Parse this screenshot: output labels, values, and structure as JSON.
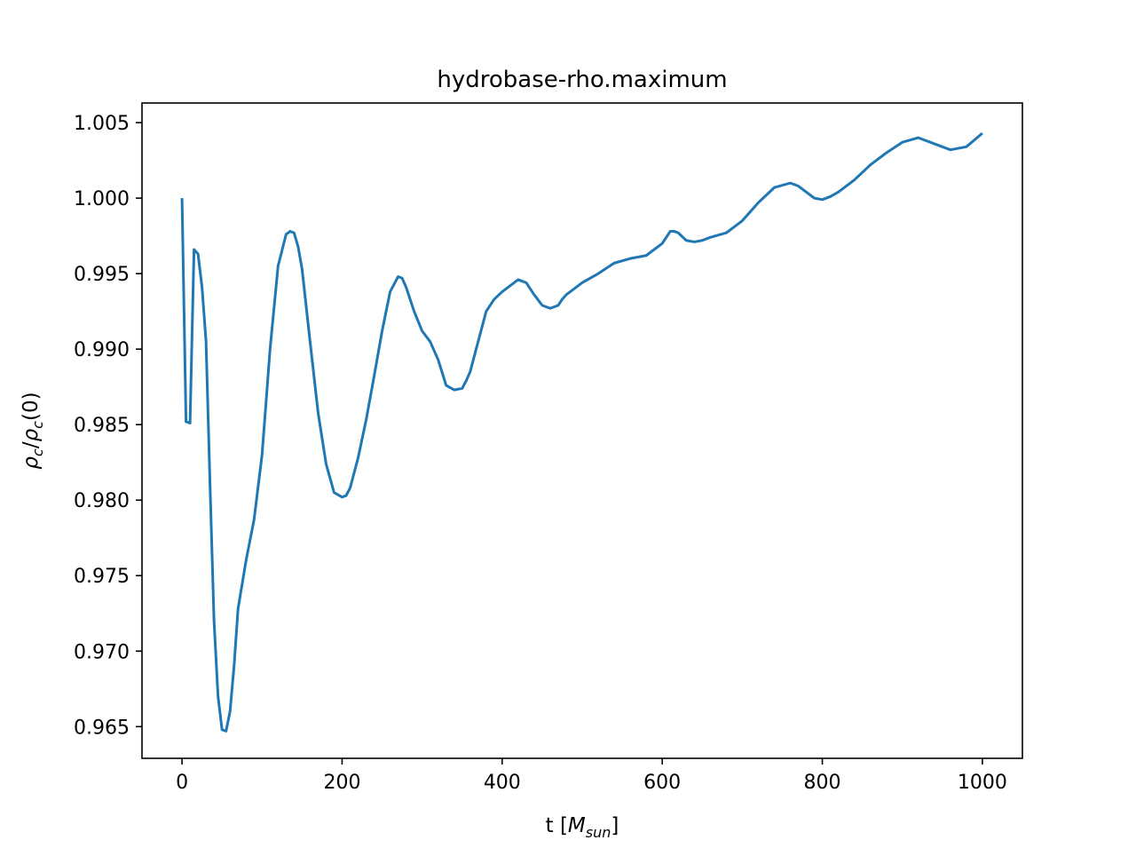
{
  "chart_data": {
    "type": "line",
    "title": "hydrobase-rho.maximum",
    "xlabel": {
      "prefix": "t [",
      "main": "M",
      "subscript": "sun",
      "suffix": "]"
    },
    "ylabel": {
      "rho1": "ρ",
      "sub1": "c",
      "slash": "/",
      "rho2": "ρ",
      "sub2": "c",
      "suffix": "(0)"
    },
    "xlim": [
      -50,
      1050
    ],
    "ylim": [
      0.9629,
      1.0063
    ],
    "x_ticks": [
      0,
      200,
      400,
      600,
      800,
      1000
    ],
    "x_tick_labels": [
      "0",
      "200",
      "400",
      "600",
      "800",
      "1000"
    ],
    "y_ticks": [
      0.965,
      0.97,
      0.975,
      0.98,
      0.985,
      0.99,
      0.995,
      1.0,
      1.005
    ],
    "y_tick_labels": [
      "0.965",
      "0.970",
      "0.975",
      "0.980",
      "0.985",
      "0.990",
      "0.995",
      "1.000",
      "1.005"
    ],
    "grid": false,
    "line_color": "#1f77b4",
    "series": [
      {
        "x": [
          0,
          5,
          10,
          15,
          20,
          25,
          30,
          35,
          40,
          45,
          50,
          55,
          60,
          65,
          70,
          80,
          90,
          100,
          110,
          120,
          130,
          135,
          140,
          145,
          150,
          160,
          170,
          180,
          190,
          200,
          205,
          210,
          220,
          230,
          240,
          250,
          260,
          270,
          275,
          280,
          290,
          300,
          310,
          320,
          330,
          340,
          350,
          355,
          360,
          370,
          380,
          390,
          400,
          420,
          430,
          440,
          450,
          460,
          470,
          475,
          480,
          490,
          500,
          520,
          540,
          560,
          580,
          600,
          610,
          615,
          620,
          630,
          640,
          650,
          660,
          680,
          700,
          720,
          740,
          760,
          770,
          780,
          790,
          800,
          810,
          820,
          840,
          860,
          880,
          900,
          920,
          940,
          960,
          980,
          1000
        ],
        "y": [
          1.0,
          0.9852,
          0.9851,
          0.9966,
          0.9963,
          0.9941,
          0.9905,
          0.981,
          0.972,
          0.967,
          0.9648,
          0.9647,
          0.966,
          0.969,
          0.9728,
          0.976,
          0.9787,
          0.983,
          0.99,
          0.9955,
          0.9976,
          0.9978,
          0.9977,
          0.9968,
          0.9953,
          0.9905,
          0.9858,
          0.9824,
          0.9805,
          0.9802,
          0.9803,
          0.9808,
          0.9828,
          0.9853,
          0.9882,
          0.9912,
          0.9938,
          0.9948,
          0.9947,
          0.9941,
          0.9925,
          0.9912,
          0.9905,
          0.9893,
          0.9876,
          0.9873,
          0.9874,
          0.9879,
          0.9885,
          0.9905,
          0.9925,
          0.9933,
          0.9938,
          0.9946,
          0.9944,
          0.9936,
          0.9929,
          0.9927,
          0.9929,
          0.9933,
          0.9936,
          0.994,
          0.9944,
          0.995,
          0.9957,
          0.996,
          0.9962,
          0.997,
          0.9978,
          0.9978,
          0.9977,
          0.9972,
          0.9971,
          0.9972,
          0.9974,
          0.9977,
          0.9985,
          0.9997,
          1.0007,
          1.001,
          1.0008,
          1.0004,
          1.0,
          0.9999,
          1.0001,
          1.0004,
          1.0012,
          1.0022,
          1.003,
          1.0037,
          1.004,
          1.0036,
          1.0032,
          1.0034,
          1.0043
        ]
      }
    ]
  }
}
